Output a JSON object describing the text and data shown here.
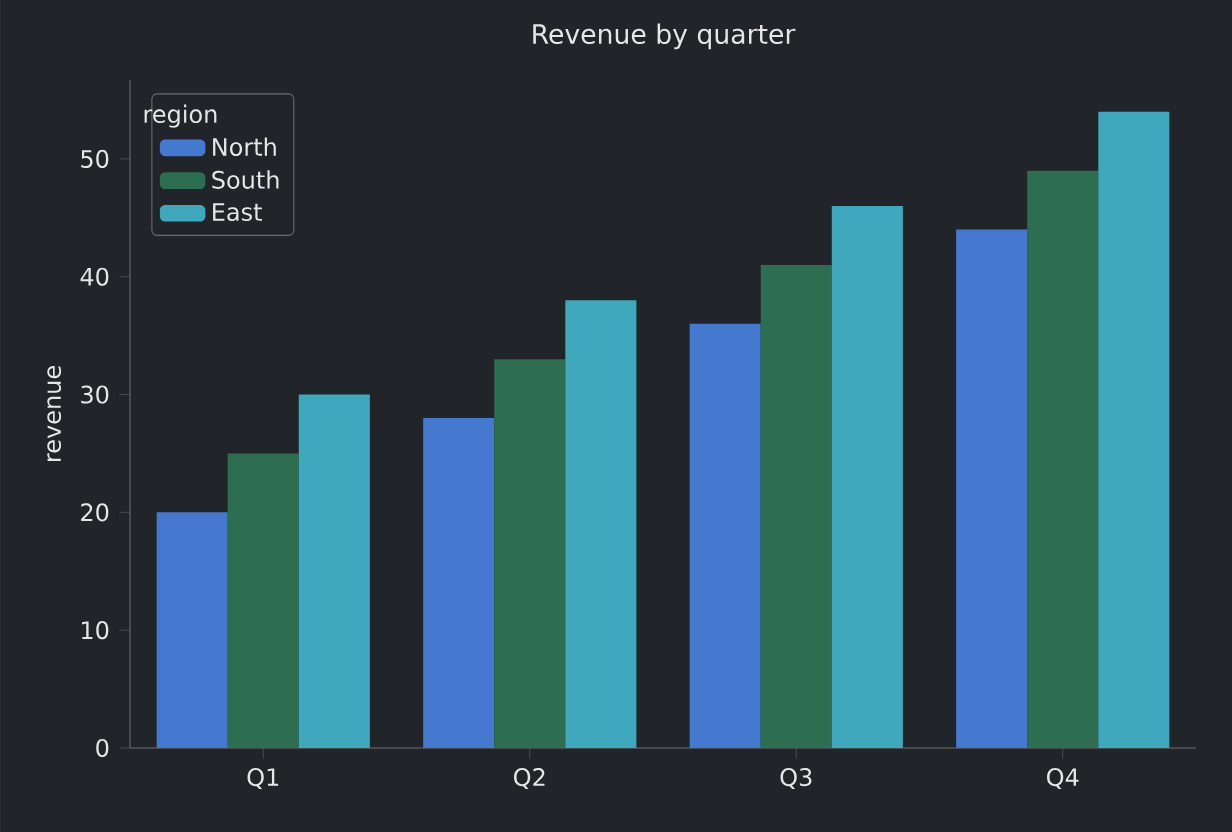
{
  "chart_data": {
    "type": "bar",
    "title": "Revenue by quarter",
    "ylabel": "revenue",
    "legend_title": "region",
    "categories": [
      "Q1",
      "Q2",
      "Q3",
      "Q4"
    ],
    "series": [
      {
        "name": "North",
        "color": "#4479cf",
        "values": [
          20,
          28,
          36,
          44
        ]
      },
      {
        "name": "South",
        "color": "#2e6e50",
        "values": [
          25,
          33,
          41,
          49
        ]
      },
      {
        "name": "East",
        "color": "#3fa8bd",
        "values": [
          30,
          38,
          46,
          54
        ]
      }
    ],
    "ylim": [
      0,
      56.7
    ],
    "yticks": [
      0,
      10,
      20,
      30,
      40,
      50
    ],
    "grid": false,
    "legend": "top left"
  }
}
